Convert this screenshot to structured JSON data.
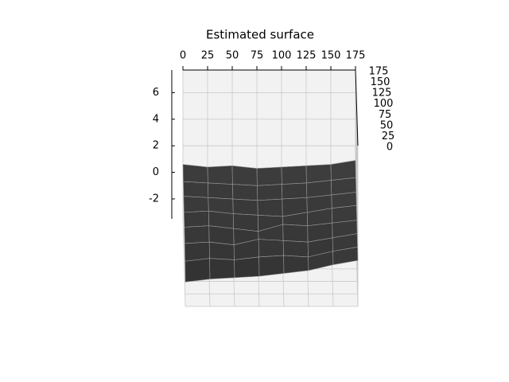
{
  "chart_data": {
    "type": "surface",
    "title": "Estimated surface",
    "x": [
      0,
      25,
      50,
      75,
      100,
      125,
      150,
      175
    ],
    "y": [
      0,
      25,
      50,
      75,
      100,
      125,
      150,
      175
    ],
    "z": [
      [
        -1.8,
        -1.6,
        -1.5,
        -1.4,
        -1.2,
        -1.0,
        -0.6,
        -0.3
      ],
      [
        -1.2,
        -1.0,
        -1.1,
        -0.9,
        -0.8,
        -0.9,
        -0.5,
        -0.2
      ],
      [
        -0.8,
        -0.7,
        -0.9,
        -0.5,
        -0.6,
        -0.7,
        -0.4,
        -0.1
      ],
      [
        -0.5,
        -0.4,
        -0.6,
        -0.8,
        -0.3,
        -0.4,
        -0.2,
        0.0
      ],
      [
        -0.3,
        -0.2,
        -0.4,
        -0.5,
        -0.6,
        -0.3,
        0.0,
        0.2
      ],
      [
        0.0,
        -0.1,
        -0.2,
        -0.3,
        -0.2,
        -0.1,
        0.1,
        0.3
      ],
      [
        0.2,
        0.1,
        0.0,
        -0.1,
        0.0,
        0.1,
        0.3,
        0.5
      ],
      [
        0.6,
        0.4,
        0.5,
        0.3,
        0.4,
        0.5,
        0.6,
        0.9
      ]
    ],
    "xlim": [
      0,
      175
    ],
    "ylim": [
      0,
      175
    ],
    "zlim": [
      -3.5,
      7.7
    ],
    "xticks": [
      0,
      25,
      50,
      75,
      100,
      125,
      150,
      175
    ],
    "yticks": [
      0,
      25,
      50,
      75,
      100,
      125,
      150,
      175
    ],
    "zticks": [
      -2,
      0,
      2,
      4,
      6
    ],
    "color": "#3a3a3a",
    "grid": true
  }
}
